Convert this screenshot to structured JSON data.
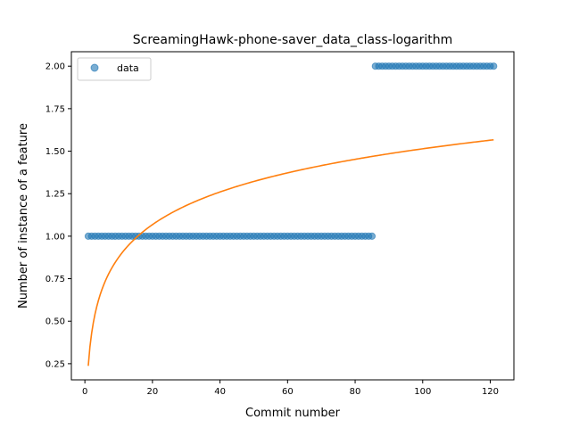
{
  "chart_data": {
    "type": "scatter",
    "title": "ScreamingHawk-phone-saver_data_class-logarithm",
    "xlabel": "Commit number",
    "ylabel": "Number of instance of a feature",
    "xlim": [
      -4,
      127
    ],
    "ylim": [
      0.155,
      2.085
    ],
    "xticks": [
      0,
      20,
      40,
      60,
      80,
      100,
      120
    ],
    "yticks": [
      0.25,
      0.5,
      0.75,
      1.0,
      1.25,
      1.5,
      1.75,
      2.0
    ],
    "grid": false,
    "legend": {
      "position": "top-left",
      "entries": [
        "data"
      ]
    },
    "series": [
      {
        "name": "data",
        "kind": "scatter",
        "color": "#1f77b4",
        "alpha": 0.6,
        "segments": [
          {
            "x_from": 1,
            "x_to": 85,
            "y": 1
          },
          {
            "x_from": 86,
            "x_to": 121,
            "y": 2
          }
        ]
      },
      {
        "kind": "line",
        "color": "#ff7f0e",
        "model": "logarithm",
        "a": 0.2375,
        "b": 0.2772,
        "x_from": 1,
        "x_to": 121
      }
    ]
  }
}
